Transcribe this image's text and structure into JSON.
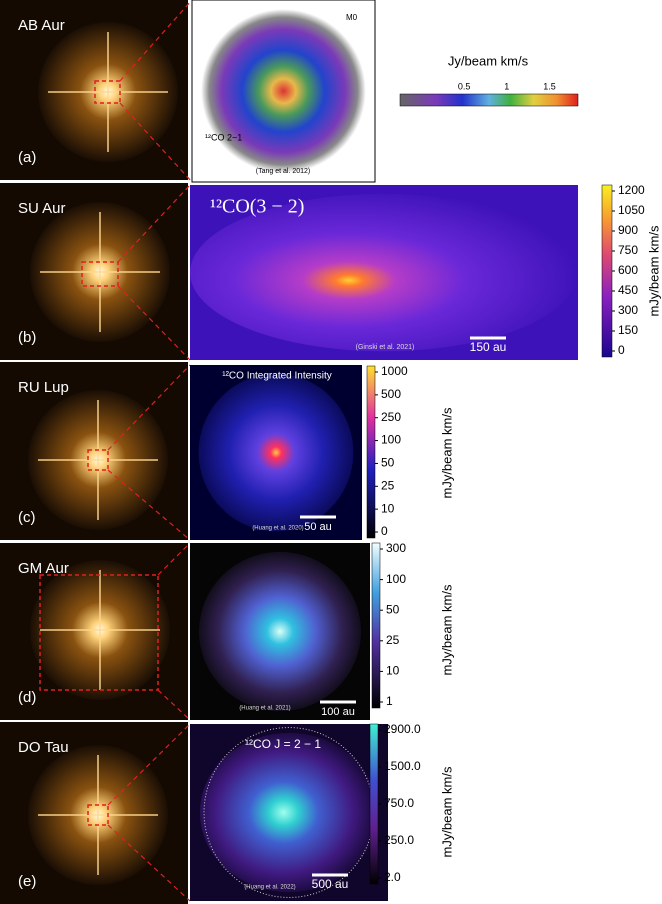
{
  "panels": [
    {
      "name": "AB Aur",
      "letter": "(a)",
      "map": {
        "title": "¹²CO 2−1",
        "label": "M0",
        "credit": "(Tang et al. 2012)",
        "colorbar": {
          "label": "Jy/beam km/s",
          "ticks": [
            "0.5",
            "1",
            "1.5"
          ]
        }
      }
    },
    {
      "name": "SU Aur",
      "letter": "(b)",
      "map": {
        "title": "¹²CO(3 − 2)",
        "credit": "(Ginski et al. 2021)",
        "scale": "150 au",
        "colorbar": {
          "label": "mJy/beam km/s",
          "ticks": [
            "1200",
            "1050",
            "900",
            "750",
            "600",
            "450",
            "300",
            "150",
            "0"
          ]
        }
      }
    },
    {
      "name": "RU Lup",
      "letter": "(c)",
      "map": {
        "title": "¹²CO Integrated Intensity",
        "credit": "(Huang et al. 2020)",
        "scale": "50 au",
        "colorbar": {
          "label": "mJy/beam km/s",
          "ticks": [
            "1000",
            "500",
            "250",
            "100",
            "50",
            "25",
            "10",
            "0"
          ]
        }
      }
    },
    {
      "name": "GM Aur",
      "letter": "(d)",
      "map": {
        "credit": "(Huang et al. 2021)",
        "scale": "100 au",
        "colorbar": {
          "label": "mJy/beam km/s",
          "ticks": [
            "300",
            "100",
            "50",
            "25",
            "10",
            "1"
          ]
        }
      }
    },
    {
      "name": "DO Tau",
      "letter": "(e)",
      "map": {
        "title": "¹²CO J = 2 − 1",
        "credit": "(Huang et al. 2022)",
        "scale": "500 au",
        "colorbar": {
          "label": "mJy/beam km/s",
          "ticks": [
            "2900.0",
            "1500.0",
            "750.0",
            "250.0",
            "2.0"
          ]
        }
      }
    }
  ]
}
